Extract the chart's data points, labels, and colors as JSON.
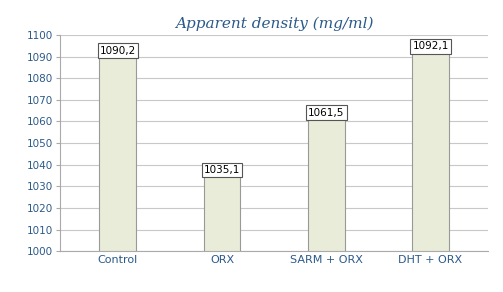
{
  "categories": [
    "Control",
    "ORX",
    "SARM + ORX",
    "DHT + ORX"
  ],
  "values": [
    1090.2,
    1035.1,
    1061.5,
    1092.1
  ],
  "labels": [
    "1090,2",
    "1035,1",
    "1061,5",
    "1092,1"
  ],
  "bar_color": "#e8ecd8",
  "bar_edgecolor": "#999999",
  "title": "Apparent density (mg/ml)",
  "title_color": "#2b5a8a",
  "title_fontsize": 11,
  "ylim": [
    1000,
    1100
  ],
  "yticks": [
    1000,
    1010,
    1020,
    1030,
    1040,
    1050,
    1060,
    1070,
    1080,
    1090,
    1100
  ],
  "grid_color": "#c8c8c8",
  "background_color": "#ffffff",
  "label_fontsize": 7.5,
  "xlabel_fontsize": 8,
  "tick_label_fontsize": 7.5,
  "bar_width": 0.35,
  "figsize": [
    5.03,
    2.92
  ],
  "dpi": 100
}
